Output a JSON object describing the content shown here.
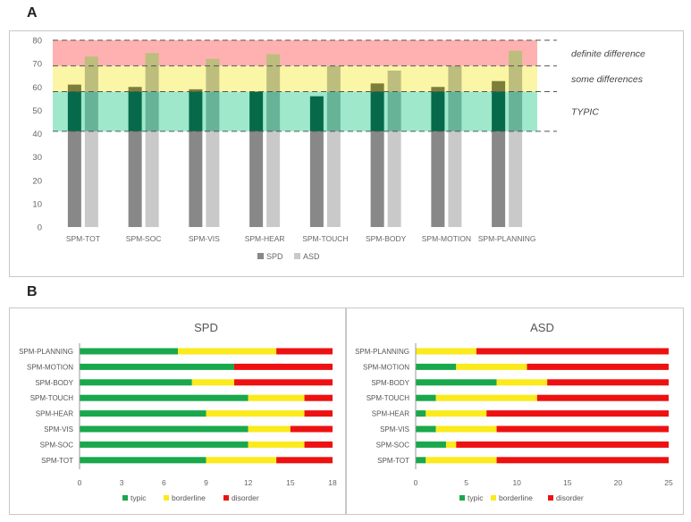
{
  "panel_labels": {
    "a": "A",
    "b": "B"
  },
  "colors": {
    "spd": "#888888",
    "asd": "#c9c9c9",
    "band_definite": "#ffb0b0",
    "band_some": "#fbf6a6",
    "band_typic": "#9fe8cc",
    "overlay_dark": "#066a4a",
    "overlay_light": "#67b398",
    "over_dark": "#7d7e3a",
    "over_light": "#bdbd7d",
    "typic": "#19a84c",
    "borderline": "#fbea1c",
    "disorder": "#ee1111"
  },
  "chart_data": [
    {
      "type": "bar",
      "categories": [
        "SPM-TOT",
        "SPM-SOC",
        "SPM-VIS",
        "SPM-HEAR",
        "SPM-TOUCH",
        "SPM-BODY",
        "SPM-MOTION",
        "SPM-PLANNING"
      ],
      "series": [
        {
          "name": "SPD",
          "values": [
            61,
            60,
            59,
            58,
            56,
            61.5,
            60,
            62.5
          ]
        },
        {
          "name": "ASD",
          "values": [
            73,
            74.5,
            72,
            74,
            69,
            67,
            69,
            75.5
          ]
        }
      ],
      "ylim": [
        0,
        80
      ],
      "yticks": [
        0,
        10,
        20,
        30,
        40,
        50,
        60,
        70,
        80
      ],
      "thresholds": [
        41,
        58,
        69,
        80
      ],
      "bands": [
        {
          "label": "definite difference",
          "from": 69,
          "to": 80
        },
        {
          "label": "some differences",
          "from": 58,
          "to": 69
        },
        {
          "label": "TYPIC",
          "from": 41,
          "to": 58
        }
      ],
      "legend": [
        "SPD",
        "ASD"
      ],
      "legend_position": "bottom"
    },
    {
      "type": "bar",
      "stacked": true,
      "orientation": "horizontal",
      "title": "SPD",
      "categories": [
        "SPM-PLANNING",
        "SPM-MOTION",
        "SPM-BODY",
        "SPM-TOUCH",
        "SPM-HEAR",
        "SPM-VIS",
        "SPM-SOC",
        "SPM-TOT"
      ],
      "series": [
        {
          "name": "typic",
          "values": [
            7,
            11,
            8,
            12,
            9,
            12,
            12,
            9
          ]
        },
        {
          "name": "borderline",
          "values": [
            7,
            0,
            3,
            4,
            7,
            3,
            4,
            5
          ]
        },
        {
          "name": "disorder",
          "values": [
            4,
            7,
            7,
            2,
            2,
            3,
            2,
            4
          ]
        }
      ],
      "xlim": [
        0,
        18
      ],
      "xticks": [
        0,
        3,
        6,
        9,
        12,
        15,
        18
      ],
      "legend_position": "bottom"
    },
    {
      "type": "bar",
      "stacked": true,
      "orientation": "horizontal",
      "title": "ASD",
      "categories": [
        "SPM-PLANNING",
        "SPM-MOTION",
        "SPM-BODY",
        "SPM-TOUCH",
        "SPM-HEAR",
        "SPM-VIS",
        "SPM-SOC",
        "SPM-TOT"
      ],
      "series": [
        {
          "name": "typic",
          "values": [
            0,
            4,
            8,
            2,
            1,
            2,
            3,
            1
          ]
        },
        {
          "name": "borderline",
          "values": [
            6,
            7,
            5,
            10,
            6,
            6,
            1,
            7
          ]
        },
        {
          "name": "disorder",
          "values": [
            19,
            14,
            12,
            13,
            18,
            17,
            21,
            17
          ]
        }
      ],
      "xlim": [
        0,
        25
      ],
      "xticks": [
        0,
        5,
        10,
        15,
        20,
        25
      ],
      "legend_position": "bottom"
    }
  ]
}
